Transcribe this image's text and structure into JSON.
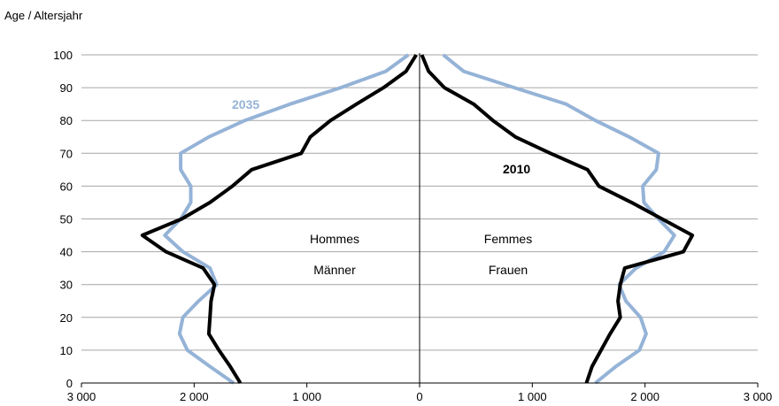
{
  "chart_data": {
    "type": "line",
    "ylabel": "Age / Altersjahr",
    "xlim": [
      -3000,
      3000
    ],
    "ylim": [
      0,
      100
    ],
    "x_ticks": [
      -3000,
      -2000,
      -1000,
      0,
      1000,
      2000,
      3000
    ],
    "x_tick_labels": [
      "3 000",
      "2 000",
      "1 000",
      "0",
      "1 000",
      "2 000",
      "3 000"
    ],
    "y_ticks": [
      0,
      10,
      20,
      30,
      40,
      50,
      60,
      70,
      80,
      90,
      100
    ],
    "y_tick_labels": [
      "0",
      "10",
      "20",
      "30",
      "40",
      "50",
      "60",
      "70",
      "80",
      "90",
      "100"
    ],
    "grid": "horizontal",
    "annotations": {
      "men_fr": "Hommes",
      "men_de": "Männer",
      "women_fr": "Femmes",
      "women_de": "Frauen"
    },
    "series": [
      {
        "name": "2010",
        "color": "#000000",
        "ages": [
          0,
          5,
          10,
          15,
          20,
          25,
          30,
          35,
          40,
          45,
          50,
          55,
          60,
          65,
          70,
          75,
          80,
          85,
          90,
          95,
          100
        ],
        "men": [
          1590,
          1680,
          1780,
          1870,
          1860,
          1850,
          1820,
          1920,
          2250,
          2460,
          2110,
          1860,
          1660,
          1490,
          1050,
          970,
          790,
          560,
          320,
          120,
          30
        ],
        "women": [
          1480,
          1530,
          1610,
          1690,
          1780,
          1760,
          1780,
          1820,
          2340,
          2420,
          2150,
          1880,
          1590,
          1490,
          1160,
          850,
          650,
          480,
          220,
          80,
          20
        ]
      },
      {
        "name": "2035",
        "color": "#95b3d7",
        "ages": [
          0,
          5,
          10,
          15,
          20,
          25,
          30,
          35,
          40,
          45,
          50,
          55,
          60,
          65,
          70,
          75,
          80,
          85,
          90,
          95,
          100
        ],
        "men": [
          1650,
          1860,
          2060,
          2130,
          2100,
          1960,
          1800,
          1860,
          2100,
          2260,
          2120,
          2030,
          2030,
          2120,
          2120,
          1870,
          1550,
          1150,
          700,
          300,
          100
        ],
        "women": [
          1560,
          1740,
          1950,
          2010,
          1960,
          1830,
          1770,
          1920,
          2170,
          2260,
          2120,
          1990,
          1980,
          2100,
          2120,
          1860,
          1560,
          1300,
          840,
          390,
          210
        ]
      }
    ]
  }
}
